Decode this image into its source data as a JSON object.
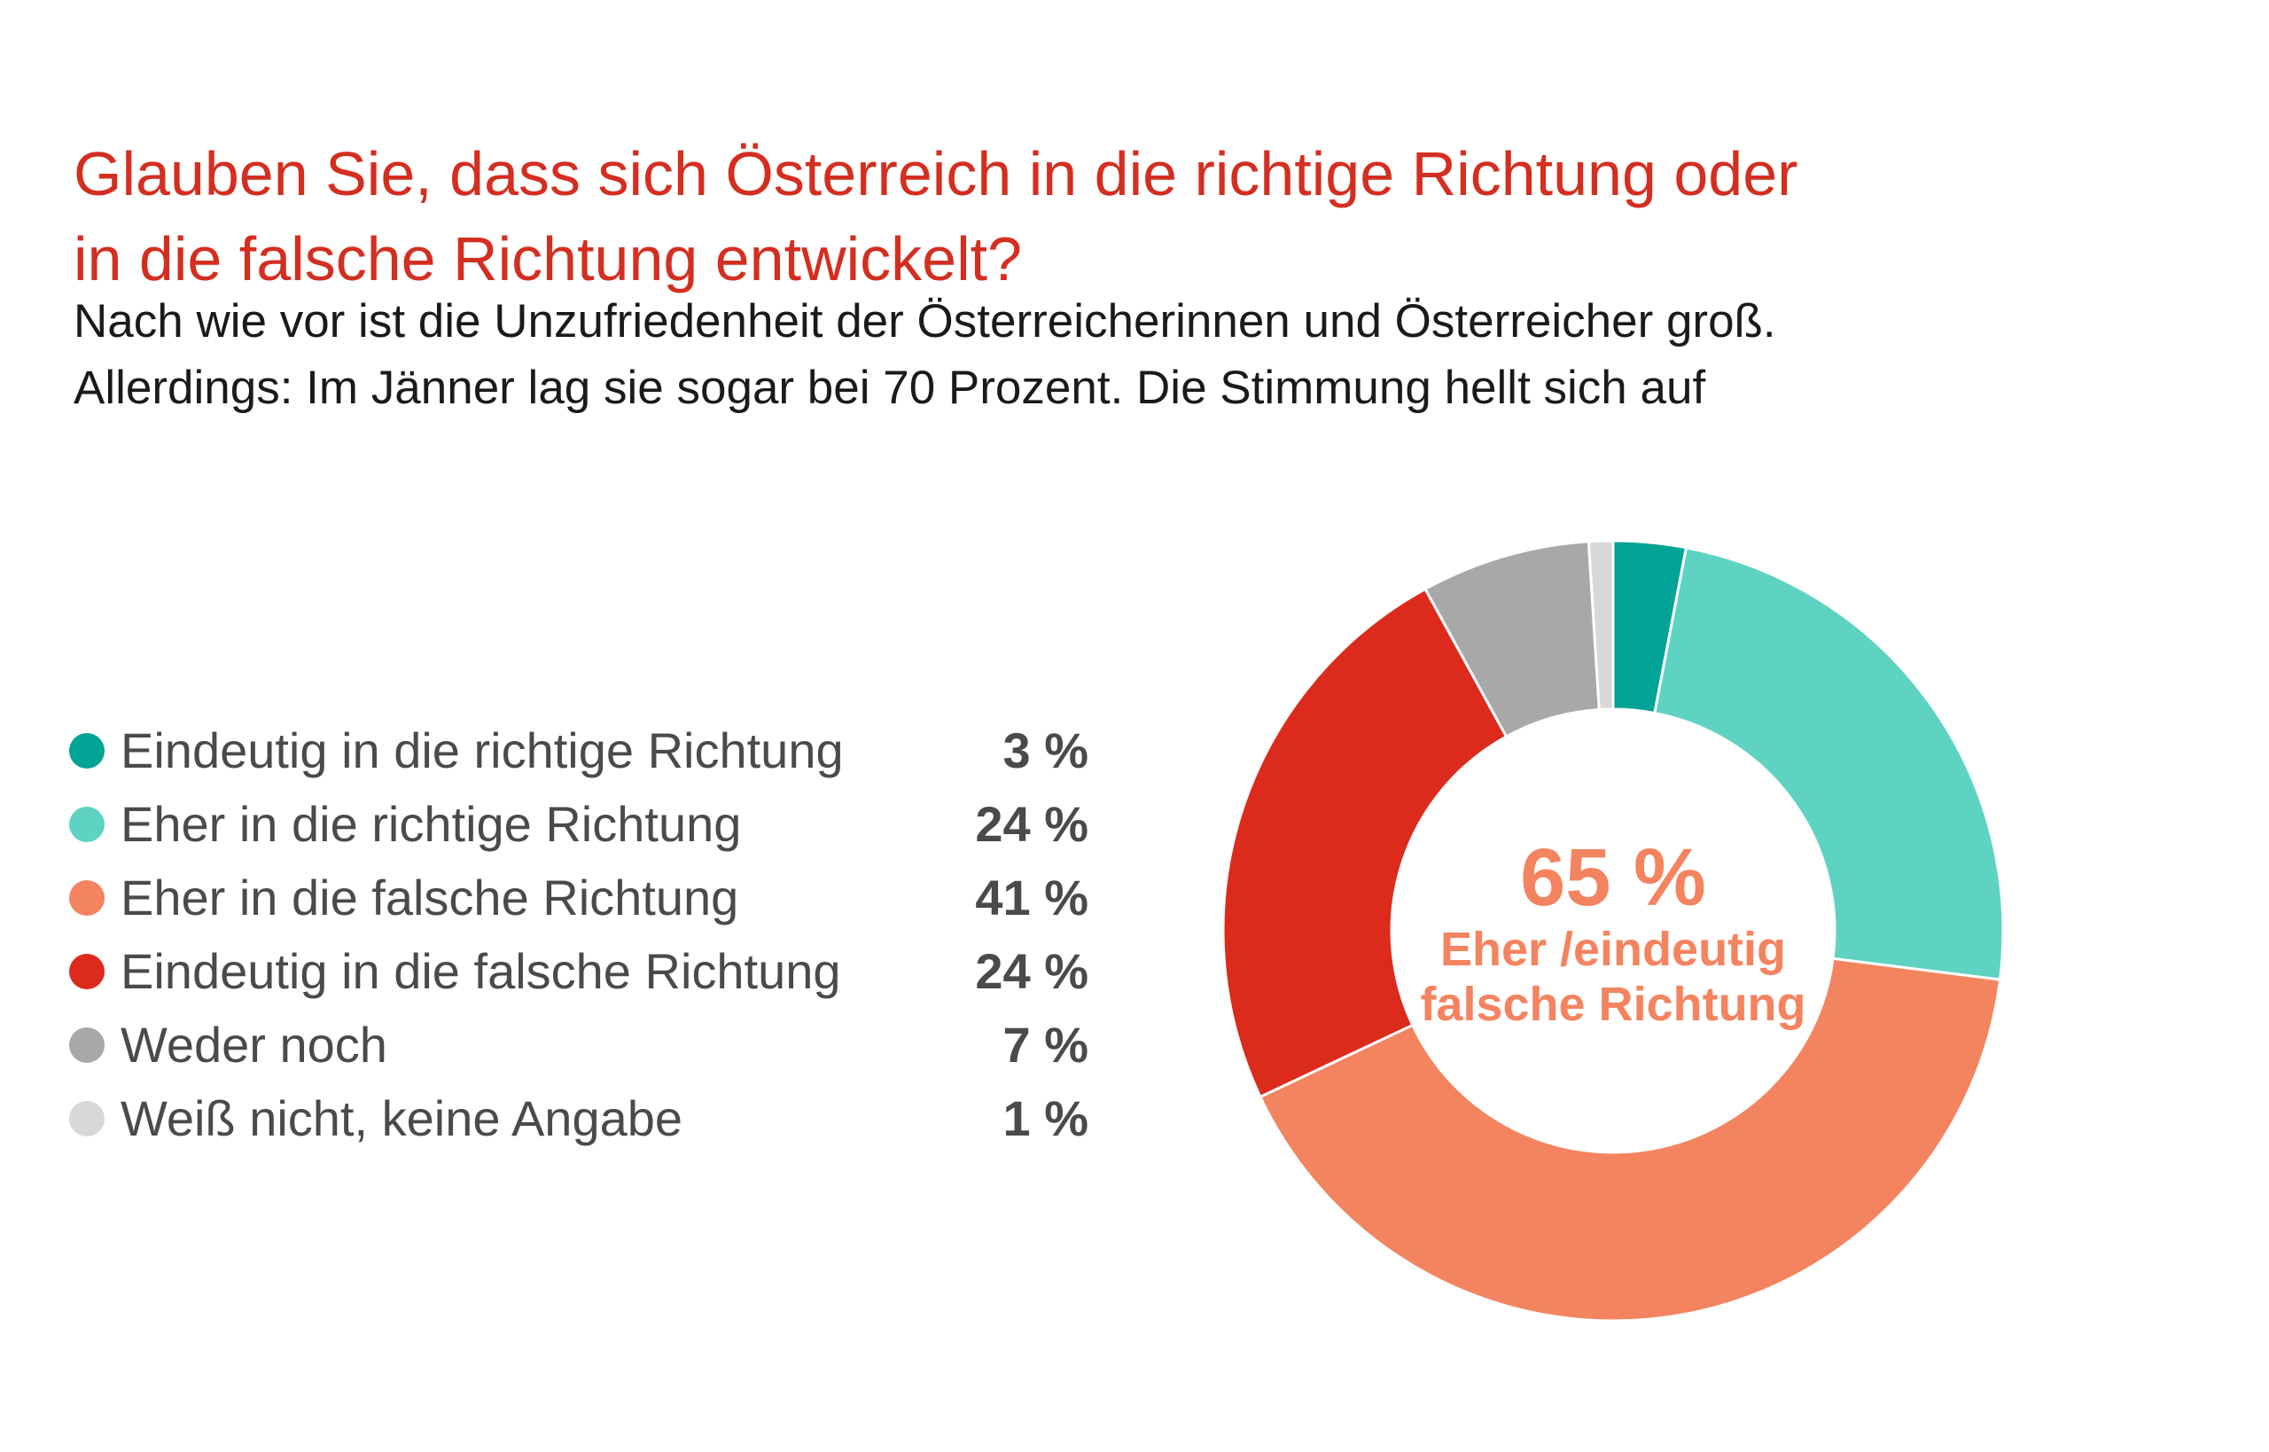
{
  "title_lines": [
    "Glauben Sie, dass sich Österreich in die richtige Richtung oder",
    "in die falsche Richtung entwickelt?"
  ],
  "subtitle_lines": [
    "Nach wie vor ist die Unzufriedenheit der Österreicherinnen und Österreicher groß.",
    "Allerdings: Im Jänner lag sie sogar bei 70 Prozent. Die Stimmung hellt sich auf"
  ],
  "legend": [
    {
      "label": "Eindeutig in die richtige Richtung",
      "value_text": "3 %"
    },
    {
      "label": "Eher in die richtige Richtung",
      "value_text": "24 %"
    },
    {
      "label": "Eher in die falsche Richtung",
      "value_text": "41 %"
    },
    {
      "label": "Eindeutig in die falsche Richtung",
      "value_text": "24 %"
    },
    {
      "label": "Weder noch",
      "value_text": "7 %"
    },
    {
      "label": "Weiß nicht, keine Angabe",
      "value_text": "1 %"
    }
  ],
  "center": {
    "value": "65 %",
    "label_line1": "Eher /eindeutig",
    "label_line2": "falsche Richtung"
  },
  "chart_data": {
    "type": "pie",
    "style": "donut",
    "categories": [
      "Eindeutig in die richtige Richtung",
      "Eher in die richtige Richtung",
      "Eher in die falsche Richtung",
      "Eindeutig in die falsche Richtung",
      "Weder noch",
      "Weiß nicht, keine Angabe"
    ],
    "values": [
      3,
      24,
      41,
      24,
      7,
      1
    ],
    "unit": "%",
    "colors": [
      "#00a396",
      "#5fd3c2",
      "#f4835f",
      "#dc2b1c",
      "#a8a8a8",
      "#d8d8d8"
    ],
    "start": "top",
    "direction": "clockwise",
    "legend_position": "left"
  }
}
